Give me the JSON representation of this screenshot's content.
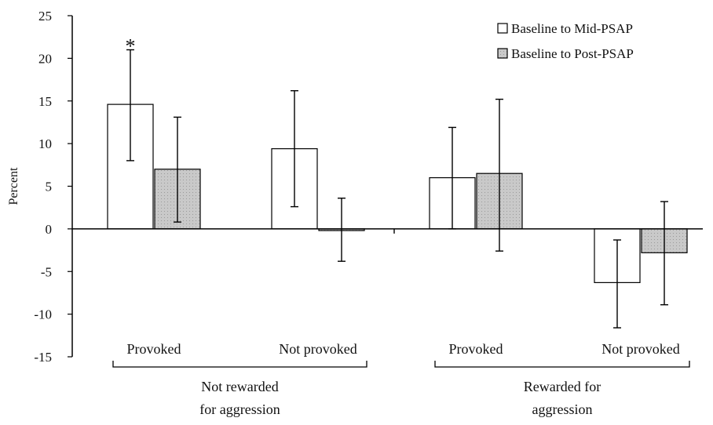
{
  "chart_data": {
    "type": "bar",
    "title": "",
    "ylabel": "Percent",
    "xlabel": "",
    "ylim": [
      -15,
      25
    ],
    "yticks": [
      -15,
      -10,
      -5,
      0,
      5,
      10,
      15,
      20,
      25
    ],
    "legend_position": "top-right",
    "categories": [
      "Provoked",
      "Not provoked",
      "Provoked",
      "Not provoked"
    ],
    "groups": [
      {
        "label_line1": "Not rewarded",
        "label_line2": "for aggression",
        "categories": [
          0,
          1
        ]
      },
      {
        "label_line1": "Rewarded for",
        "label_line2": "aggression",
        "categories": [
          2,
          3
        ]
      }
    ],
    "series": [
      {
        "name": "Baseline to Mid-PSAP",
        "color": "#ffffff",
        "values": [
          14.6,
          9.4,
          6.0,
          -6.3
        ],
        "error_low": [
          8.0,
          2.6,
          0.0,
          -11.6
        ],
        "error_high": [
          21.0,
          16.2,
          11.9,
          -1.3
        ]
      },
      {
        "name": "Baseline to Post-PSAP",
        "color": "#c9c9c9",
        "values": [
          7.0,
          -0.2,
          6.5,
          -2.8
        ],
        "error_low": [
          0.8,
          -3.8,
          -2.6,
          -8.9
        ],
        "error_high": [
          13.1,
          3.6,
          15.2,
          3.2
        ]
      }
    ],
    "annotations": [
      {
        "text": "*",
        "category": 0,
        "series": 0
      }
    ]
  }
}
